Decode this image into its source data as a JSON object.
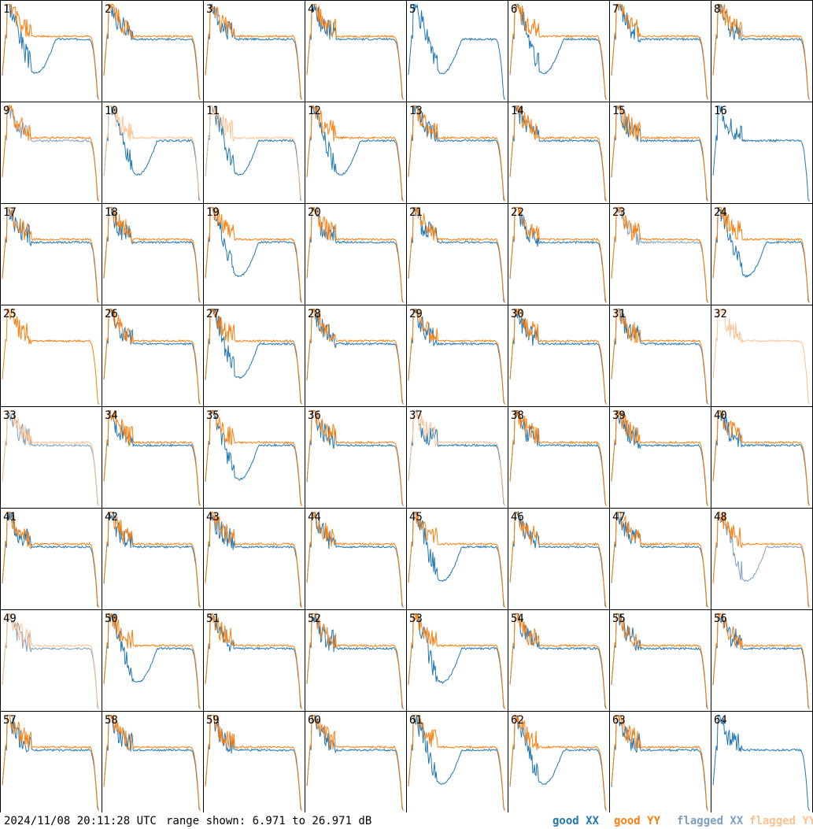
{
  "chart_data": {
    "type": "line",
    "grid": {
      "rows": 8,
      "cols": 8
    },
    "panels": [
      {
        "id": "1",
        "xx": "good",
        "yy": "good",
        "profile": "dip"
      },
      {
        "id": "2",
        "xx": "good",
        "yy": "good",
        "profile": "flat"
      },
      {
        "id": "3",
        "xx": "good",
        "yy": "good",
        "profile": "flat"
      },
      {
        "id": "4",
        "xx": "good",
        "yy": "good",
        "profile": "flat"
      },
      {
        "id": "5",
        "xx": "good",
        "yy": "none",
        "profile": "dip"
      },
      {
        "id": "6",
        "xx": "good",
        "yy": "good",
        "profile": "dip"
      },
      {
        "id": "7",
        "xx": "good",
        "yy": "good",
        "profile": "flat"
      },
      {
        "id": "8",
        "xx": "good",
        "yy": "good",
        "profile": "flat"
      },
      {
        "id": "9",
        "xx": "flagged",
        "yy": "good",
        "profile": "flat"
      },
      {
        "id": "10",
        "xx": "good",
        "yy": "flagged",
        "profile": "dip"
      },
      {
        "id": "11",
        "xx": "good",
        "yy": "flagged",
        "profile": "dip"
      },
      {
        "id": "12",
        "xx": "good",
        "yy": "good",
        "profile": "dip"
      },
      {
        "id": "13",
        "xx": "good",
        "yy": "good",
        "profile": "flat"
      },
      {
        "id": "14",
        "xx": "good",
        "yy": "good",
        "profile": "flat"
      },
      {
        "id": "15",
        "xx": "good",
        "yy": "good",
        "profile": "flat"
      },
      {
        "id": "16",
        "xx": "good",
        "yy": "none",
        "profile": "flat"
      },
      {
        "id": "17",
        "xx": "good",
        "yy": "good",
        "profile": "flat"
      },
      {
        "id": "18",
        "xx": "good",
        "yy": "good",
        "profile": "flat"
      },
      {
        "id": "19",
        "xx": "good",
        "yy": "good",
        "profile": "dip"
      },
      {
        "id": "20",
        "xx": "good",
        "yy": "good",
        "profile": "flat"
      },
      {
        "id": "21",
        "xx": "good",
        "yy": "good",
        "profile": "flat"
      },
      {
        "id": "22",
        "xx": "good",
        "yy": "good",
        "profile": "flat"
      },
      {
        "id": "23",
        "xx": "flagged",
        "yy": "good",
        "profile": "flat"
      },
      {
        "id": "24",
        "xx": "good",
        "yy": "good",
        "profile": "dip"
      },
      {
        "id": "25",
        "xx": "none",
        "yy": "good",
        "profile": "flat"
      },
      {
        "id": "26",
        "xx": "good",
        "yy": "good",
        "profile": "flat"
      },
      {
        "id": "27",
        "xx": "good",
        "yy": "good",
        "profile": "dip"
      },
      {
        "id": "28",
        "xx": "good",
        "yy": "good",
        "profile": "flat"
      },
      {
        "id": "29",
        "xx": "good",
        "yy": "good",
        "profile": "flat"
      },
      {
        "id": "30",
        "xx": "good",
        "yy": "good",
        "profile": "flat"
      },
      {
        "id": "31",
        "xx": "good",
        "yy": "good",
        "profile": "flat"
      },
      {
        "id": "32",
        "xx": "none",
        "yy": "flagged",
        "profile": "flat"
      },
      {
        "id": "33",
        "xx": "flagged",
        "yy": "flagged",
        "profile": "flat"
      },
      {
        "id": "34",
        "xx": "good",
        "yy": "good",
        "profile": "flat"
      },
      {
        "id": "35",
        "xx": "good",
        "yy": "good",
        "profile": "dip"
      },
      {
        "id": "36",
        "xx": "good",
        "yy": "good",
        "profile": "flat"
      },
      {
        "id": "37",
        "xx": "good",
        "yy": "flagged",
        "profile": "flat"
      },
      {
        "id": "38",
        "xx": "good",
        "yy": "good",
        "profile": "flat"
      },
      {
        "id": "39",
        "xx": "good",
        "yy": "good",
        "profile": "flat"
      },
      {
        "id": "40",
        "xx": "good",
        "yy": "good",
        "profile": "flat"
      },
      {
        "id": "41",
        "xx": "good",
        "yy": "good",
        "profile": "flat"
      },
      {
        "id": "42",
        "xx": "good",
        "yy": "good",
        "profile": "flat"
      },
      {
        "id": "43",
        "xx": "good",
        "yy": "good",
        "profile": "flat"
      },
      {
        "id": "44",
        "xx": "good",
        "yy": "good",
        "profile": "flat"
      },
      {
        "id": "45",
        "xx": "good",
        "yy": "good",
        "profile": "dip"
      },
      {
        "id": "46",
        "xx": "good",
        "yy": "good",
        "profile": "flat"
      },
      {
        "id": "47",
        "xx": "good",
        "yy": "good",
        "profile": "flat"
      },
      {
        "id": "48",
        "xx": "flagged",
        "yy": "good",
        "profile": "dip"
      },
      {
        "id": "49",
        "xx": "flagged",
        "yy": "flagged",
        "profile": "flat"
      },
      {
        "id": "50",
        "xx": "good",
        "yy": "good",
        "profile": "dip"
      },
      {
        "id": "51",
        "xx": "good",
        "yy": "good",
        "profile": "flat"
      },
      {
        "id": "52",
        "xx": "good",
        "yy": "good",
        "profile": "flat"
      },
      {
        "id": "53",
        "xx": "good",
        "yy": "good",
        "profile": "dip"
      },
      {
        "id": "54",
        "xx": "good",
        "yy": "good",
        "profile": "flat"
      },
      {
        "id": "55",
        "xx": "good",
        "yy": "good",
        "profile": "flat"
      },
      {
        "id": "56",
        "xx": "good",
        "yy": "good",
        "profile": "flat"
      },
      {
        "id": "57",
        "xx": "good",
        "yy": "good",
        "profile": "flat"
      },
      {
        "id": "58",
        "xx": "good",
        "yy": "good",
        "profile": "flat"
      },
      {
        "id": "59",
        "xx": "good",
        "yy": "good",
        "profile": "flat"
      },
      {
        "id": "60",
        "xx": "good",
        "yy": "good",
        "profile": "flat"
      },
      {
        "id": "61",
        "xx": "good",
        "yy": "good",
        "profile": "dip"
      },
      {
        "id": "62",
        "xx": "good",
        "yy": "good",
        "profile": "dip"
      },
      {
        "id": "63",
        "xx": "good",
        "yy": "good",
        "profile": "flat"
      },
      {
        "id": "64",
        "xx": "good",
        "yy": "none",
        "profile": "flat"
      }
    ],
    "range_db": [
      6.971,
      26.971
    ]
  },
  "footer": {
    "timestamp": "2024/11/08 20:11:28 UTC",
    "range_text": "range shown: 6.971 to 26.971 dB"
  },
  "legend": {
    "good_xx": "good XX",
    "good_yy": "good YY",
    "flagged_xx": "flagged XX",
    "flagged_yy": "flagged YY"
  },
  "colors": {
    "good_xx": "#1f77b4",
    "good_yy": "#ff7f0e",
    "flagged_xx": "#7f9fbf",
    "flagged_yy": "#ffc190",
    "border": "#000000"
  }
}
